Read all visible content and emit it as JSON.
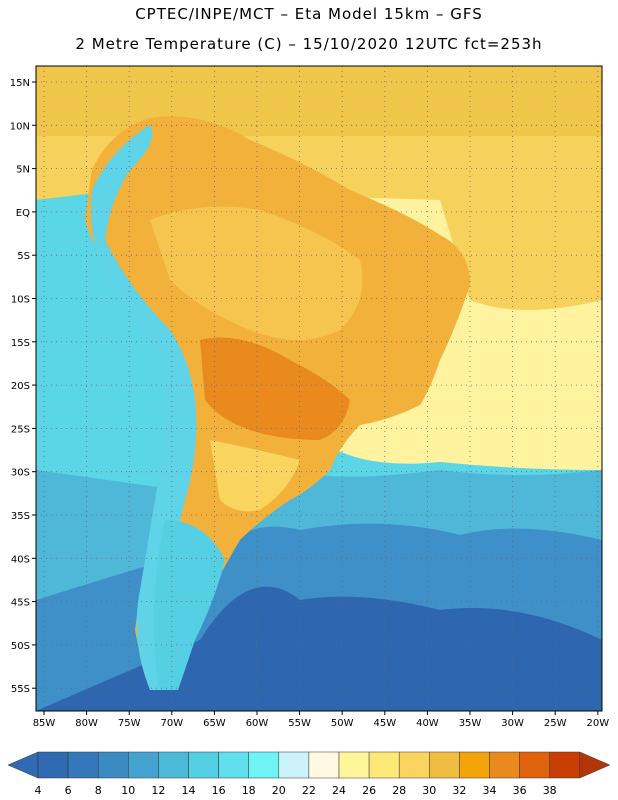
{
  "header": {
    "line1": "CPTEC/INPE/MCT –  Eta Model 15km – GFS",
    "line2": "2 Metre Temperature (C) – 15/10/2020 12UTC fct=253h"
  },
  "map": {
    "lat_labels": [
      "15N",
      "10N",
      "5N",
      "EQ",
      "5S",
      "10S",
      "15S",
      "20S",
      "25S",
      "30S",
      "35S",
      "40S",
      "45S",
      "50S",
      "55S"
    ],
    "lon_labels": [
      "85W",
      "80W",
      "75W",
      "70W",
      "65W",
      "60W",
      "55W",
      "50W",
      "45W",
      "40W",
      "35W",
      "30W",
      "25W",
      "20W"
    ],
    "layers": [
      {
        "name": "ocean-south",
        "color": "#2e66b0"
      },
      {
        "name": "ocean-mid",
        "color": "#3f8fc8"
      },
      {
        "name": "ocean-temperate",
        "color": "#4fb8d8"
      },
      {
        "name": "ocean-cool",
        "color": "#5ad6e6"
      },
      {
        "name": "ocean-warm",
        "color": "#fff3a0"
      },
      {
        "name": "ocean-tropical",
        "color": "#f6d25c"
      },
      {
        "name": "land-hot",
        "color": "#f0a030"
      },
      {
        "name": "andes",
        "color": "#5fd3e8"
      }
    ]
  },
  "colorbar": {
    "labels": [
      "4",
      "6",
      "8",
      "10",
      "12",
      "14",
      "16",
      "18",
      "20",
      "22",
      "24",
      "26",
      "28",
      "30",
      "32",
      "34",
      "36",
      "38"
    ],
    "colors": [
      "#2f6ab3",
      "#3478b9",
      "#3b8ac2",
      "#44a3cf",
      "#4cb9d9",
      "#55cfe3",
      "#5fe0ec",
      "#6ef3f7",
      "#ccf2fa",
      "#fff9e2",
      "#fff59a",
      "#fde877",
      "#f9d560",
      "#efbd3f",
      "#f2a40a",
      "#ea8a1e",
      "#e0620c",
      "#c83e04",
      "#b3360a"
    ]
  }
}
